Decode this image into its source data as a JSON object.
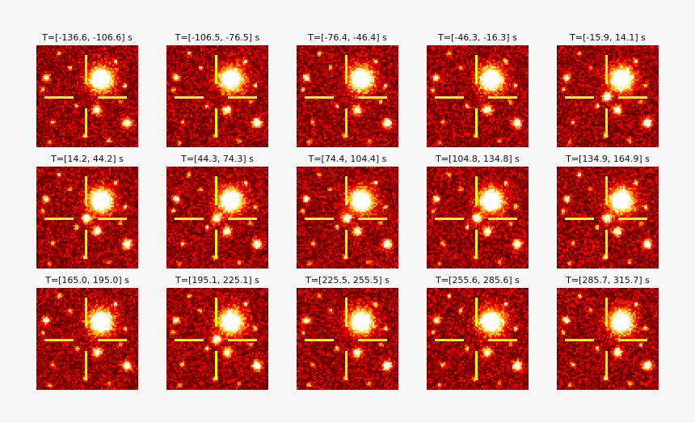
{
  "figure": {
    "panels": [
      {
        "title": "T=[-136.6, -106.6] s",
        "transient": false
      },
      {
        "title": "T=[-106.5, -76.5] s",
        "transient": false
      },
      {
        "title": "T=[-76.4, -46.4] s",
        "transient": false
      },
      {
        "title": "T=[-46.3, -16.3] s",
        "transient": false
      },
      {
        "title": "T=[-15.9, 14.1] s",
        "transient": true
      },
      {
        "title": "T=[14.2, 44.2] s",
        "transient": true
      },
      {
        "title": "T=[44.3, 74.3] s",
        "transient": true
      },
      {
        "title": "T=[74.4, 104.4] s",
        "transient": true
      },
      {
        "title": "T=[104.8, 134.8] s",
        "transient": true
      },
      {
        "title": "T=[134.9, 164.9] s",
        "transient": true
      },
      {
        "title": "T=[165.0, 195.0] s",
        "transient": false
      },
      {
        "title": "T=[195.1, 225.1] s",
        "transient": true
      },
      {
        "title": "T=[225.5, 255.5] s",
        "transient": false
      },
      {
        "title": "T=[255.6, 285.6] s",
        "transient": false
      },
      {
        "title": "T=[285.7, 315.7] s",
        "transient": false
      }
    ],
    "colors": {
      "background": "#f7f7f7",
      "crosshair": "#ffff00",
      "colormap_low": "#3a0000",
      "colormap_high": "#ffffff"
    }
  }
}
